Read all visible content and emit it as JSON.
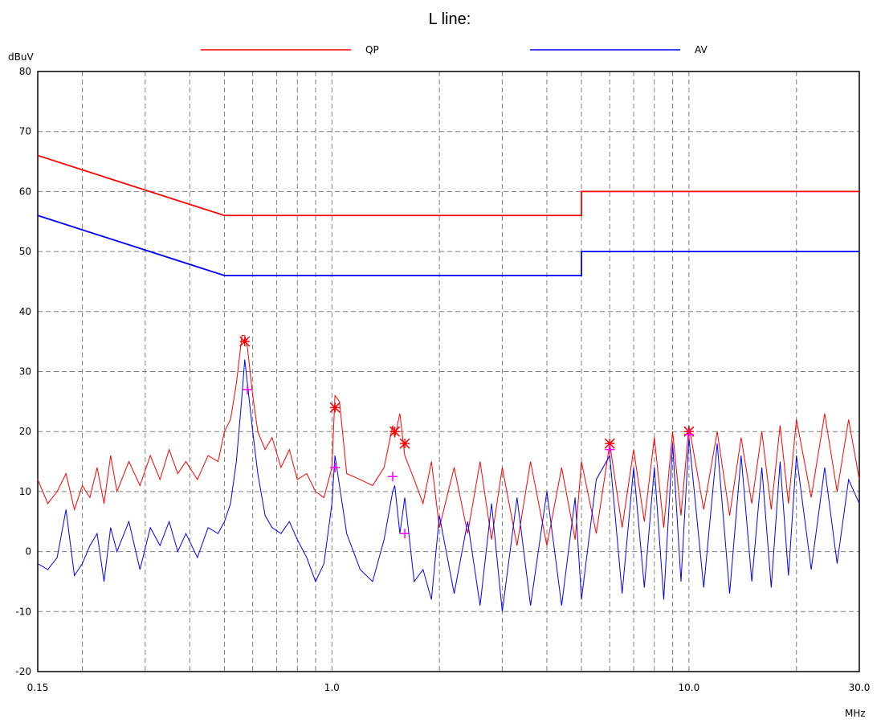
{
  "chart_data": {
    "type": "line",
    "title": "L line:",
    "y_label": "dBuV",
    "x_label": "MHz",
    "x_scale": "log",
    "grid": true,
    "legend": "top",
    "xlim": [
      0.15,
      30
    ],
    "ylim": [
      -20,
      80
    ],
    "yticks": [
      -20,
      -10,
      0,
      10,
      20,
      30,
      40,
      50,
      60,
      70,
      80
    ],
    "xticks": [
      {
        "value": 0.15,
        "label": "0.15"
      },
      {
        "value": 1,
        "label": "1.0"
      },
      {
        "value": 10,
        "label": "10.0"
      },
      {
        "value": 30,
        "label": "30.0"
      }
    ],
    "x_minor_grid": [
      0.2,
      0.3,
      0.4,
      0.5,
      0.6,
      0.7,
      0.8,
      0.9,
      2,
      3,
      4,
      5,
      6,
      7,
      8,
      9,
      20
    ],
    "x": [
      0.15,
      0.16,
      0.17,
      0.18,
      0.19,
      0.2,
      0.21,
      0.22,
      0.23,
      0.24,
      0.25,
      0.27,
      0.29,
      0.31,
      0.33,
      0.35,
      0.37,
      0.39,
      0.42,
      0.45,
      0.48,
      0.5,
      0.52,
      0.54,
      0.56,
      0.57,
      0.58,
      0.6,
      0.62,
      0.65,
      0.68,
      0.72,
      0.76,
      0.8,
      0.85,
      0.9,
      0.95,
      1.0,
      1.02,
      1.05,
      1.1,
      1.2,
      1.3,
      1.4,
      1.48,
      1.5,
      1.55,
      1.6,
      1.7,
      1.8,
      1.9,
      2.0,
      2.2,
      2.4,
      2.6,
      2.8,
      3.0,
      3.3,
      3.6,
      4.0,
      4.4,
      4.8,
      5.0,
      5.5,
      6.0,
      6.5,
      7.0,
      7.5,
      8.0,
      8.5,
      9.0,
      9.5,
      10.0,
      11,
      12,
      13,
      14,
      15,
      16,
      17,
      18,
      19,
      20,
      22,
      24,
      26,
      28,
      30
    ],
    "series": [
      {
        "name": "QP",
        "color": "#ff0000",
        "values": [
          12,
          8,
          10,
          13,
          7,
          11,
          9,
          14,
          8,
          16,
          10,
          15,
          11,
          16,
          12,
          17,
          13,
          15,
          12,
          16,
          15,
          20,
          22,
          28,
          36,
          36,
          34,
          26,
          20,
          17,
          19,
          14,
          17,
          12,
          13,
          10,
          9,
          14,
          26,
          25,
          13,
          12,
          11,
          14,
          21,
          19,
          23,
          16,
          12,
          8,
          15,
          4,
          14,
          3,
          15,
          2,
          14,
          1,
          15,
          1,
          14,
          2,
          15,
          3,
          18,
          4,
          17,
          5,
          19,
          4,
          20,
          6,
          21,
          7,
          20,
          6,
          19,
          8,
          20,
          7,
          21,
          8,
          22,
          9,
          23,
          10,
          22,
          12
        ]
      },
      {
        "name": "AV",
        "color": "#0000ff",
        "values": [
          -2,
          -3,
          -1,
          7,
          -4,
          -2,
          1,
          3,
          -5,
          4,
          0,
          5,
          -3,
          4,
          1,
          5,
          0,
          3,
          -1,
          4,
          3,
          5,
          8,
          15,
          26,
          32,
          28,
          20,
          13,
          6,
          4,
          3,
          5,
          2,
          -1,
          -5,
          -2,
          8,
          16,
          11,
          3,
          -3,
          -5,
          2,
          10,
          11,
          3,
          9,
          -5,
          -3,
          -8,
          6,
          -7,
          5,
          -9,
          8,
          -10,
          9,
          -9,
          10,
          -9,
          9,
          -8,
          12,
          16,
          -7,
          14,
          -6,
          14,
          -8,
          18,
          -5,
          19,
          -6,
          18,
          -7,
          16,
          -5,
          14,
          -6,
          15,
          -4,
          16,
          -3,
          14,
          -2,
          12,
          8
        ]
      },
      {
        "color": "#ff0000",
        "x": [
          0.15,
          0.5,
          5,
          5,
          30
        ],
        "values": [
          66,
          56,
          56,
          60,
          60
        ]
      },
      {
        "color": "#0000ff",
        "x": [
          0.15,
          0.5,
          5,
          5,
          30
        ],
        "values": [
          56,
          46,
          46,
          50,
          50
        ]
      }
    ],
    "markers": [
      {
        "color": "#ff0000",
        "symbol": "asterisk",
        "x": [
          0.57,
          1.02,
          1.5,
          1.6,
          6.0,
          10.0
        ],
        "values": [
          35,
          24,
          20,
          18,
          18,
          20
        ]
      },
      {
        "color": "#ff00ff",
        "symbol": "plus",
        "x": [
          0.58,
          1.02,
          1.48,
          1.6,
          6.0,
          10.0
        ],
        "values": [
          27,
          14,
          12.5,
          3,
          17,
          19.5
        ]
      }
    ]
  }
}
